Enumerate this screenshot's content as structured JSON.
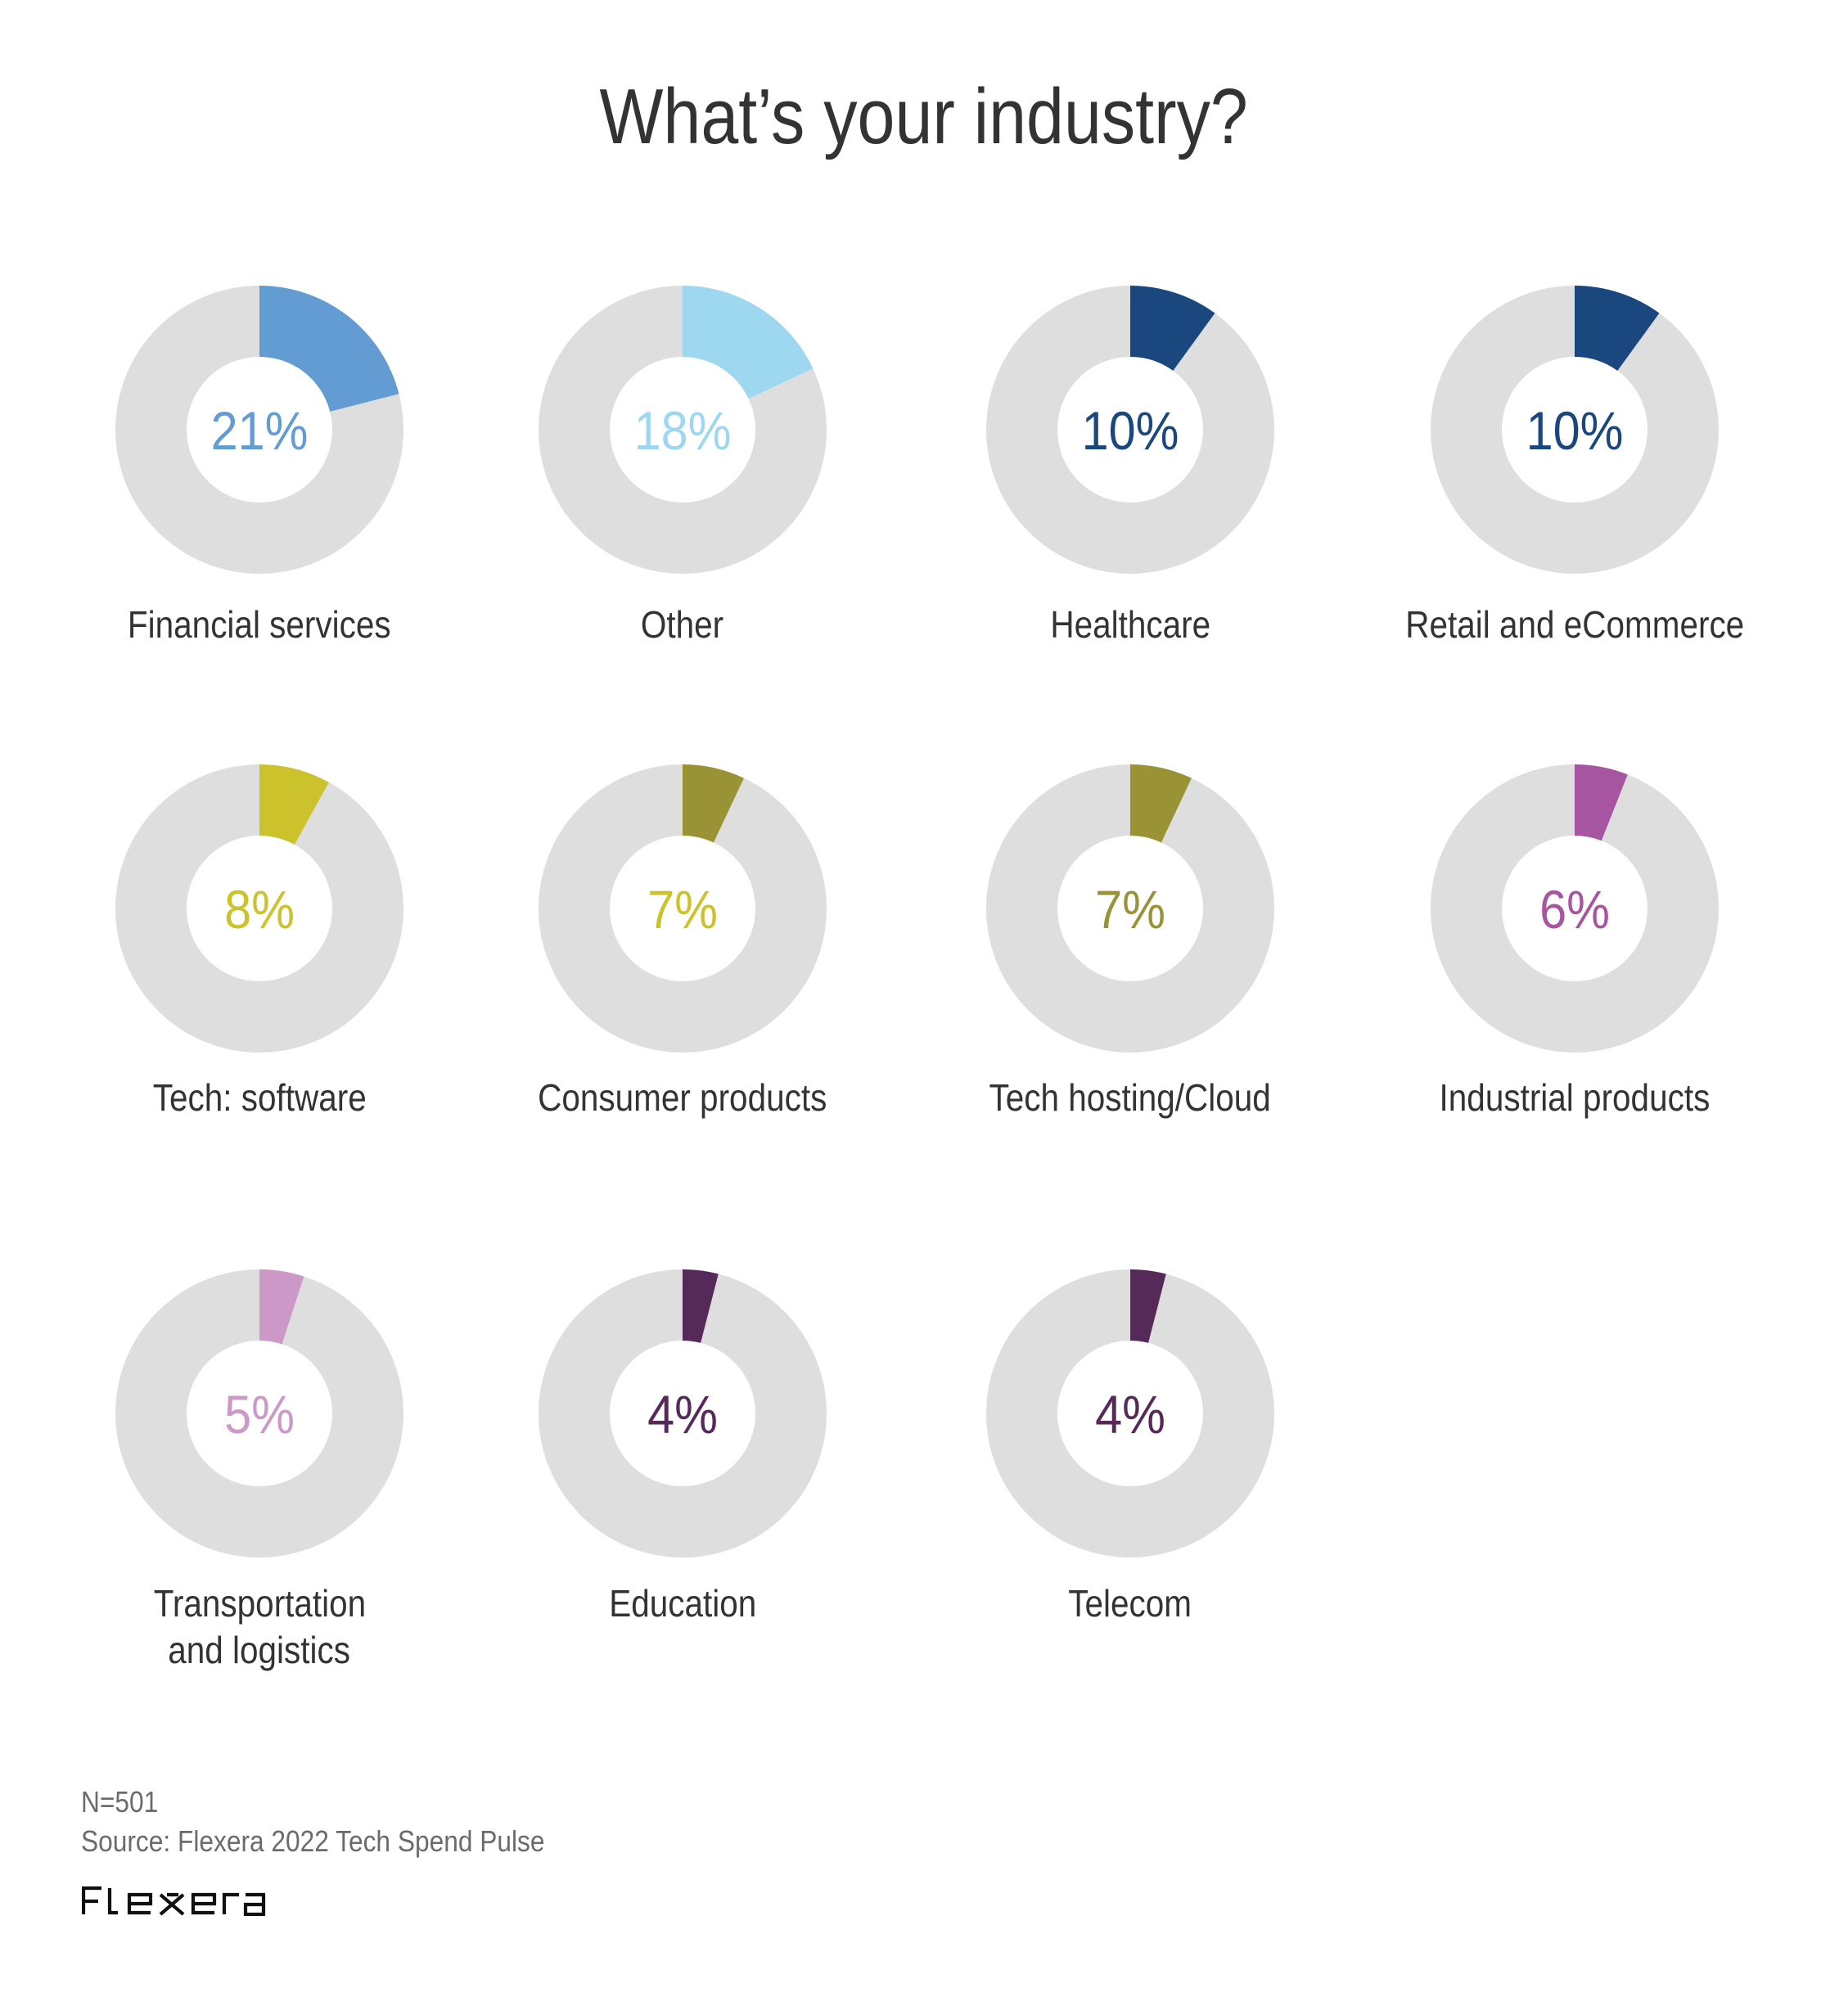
{
  "title": "What’s your industry?",
  "colors": {
    "track": "#DEDEDE",
    "text": "#333333",
    "footer_text": "#6B6B6B"
  },
  "chart_data": {
    "type": "pie",
    "subtype": "donut-small-multiples",
    "title": "What’s your industry?",
    "unit": "%",
    "items": [
      {
        "label": "Financial services",
        "value": 21,
        "value_label": "21%",
        "slice_color": "#629CD3",
        "label_color": "#629CD3"
      },
      {
        "label": "Other",
        "value": 18,
        "value_label": "18%",
        "slice_color": "#9DD8F0",
        "label_color": "#9DD8F0"
      },
      {
        "label": "Healthcare",
        "value": 10,
        "value_label": "10%",
        "slice_color": "#1A487E",
        "label_color": "#1A487E"
      },
      {
        "label": "Retail and eCommerce",
        "value": 10,
        "value_label": "10%",
        "slice_color": "#1A487E",
        "label_color": "#1A487E"
      },
      {
        "label": "Tech: software",
        "value": 8,
        "value_label": "8%",
        "slice_color": "#CCC22B",
        "label_color": "#CCC22B"
      },
      {
        "label": "Consumer products",
        "value": 7,
        "value_label": "7%",
        "slice_color": "#9A9335",
        "label_color": "#CCC22B"
      },
      {
        "label": "Tech hosting/Cloud",
        "value": 7,
        "value_label": "7%",
        "slice_color": "#9A9335",
        "label_color": "#9A9335"
      },
      {
        "label": "Industrial products",
        "value": 6,
        "value_label": "6%",
        "slice_color": "#A755A1",
        "label_color": "#A755A1"
      },
      {
        "label": "Transportation and logistics",
        "lines": [
          "Transportation",
          "and logistics"
        ],
        "value": 5,
        "value_label": "5%",
        "slice_color": "#CC98C7",
        "label_color": "#CC98C7"
      },
      {
        "label": "Education",
        "value": 4,
        "value_label": "4%",
        "slice_color": "#562A58",
        "label_color": "#562A58"
      },
      {
        "label": "Telecom",
        "value": 4,
        "value_label": "4%",
        "slice_color": "#562A58",
        "label_color": "#562A58"
      }
    ]
  },
  "footer": {
    "sample_size": "N=501",
    "source": "Source: Flexera 2022 Tech Spend Pulse",
    "logo_text": "Flexera"
  }
}
